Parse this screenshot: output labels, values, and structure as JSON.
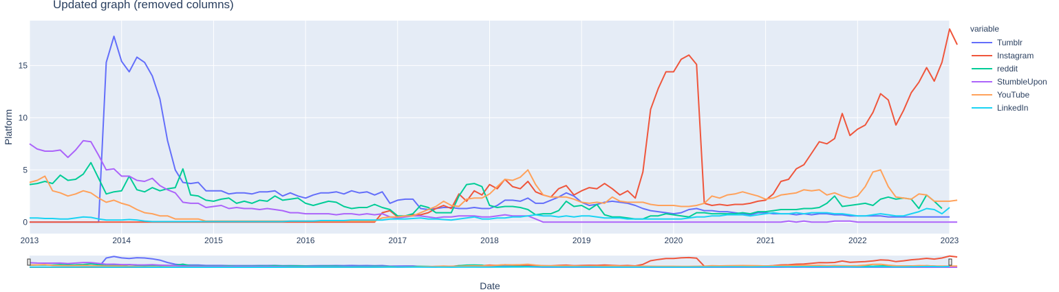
{
  "chart_data": {
    "type": "line",
    "title": "Updated graph (removed columns)",
    "xlabel": "Date",
    "ylabel": "Platform",
    "legend_title": "variable",
    "legend_position": "right",
    "grid": true,
    "range_slider": true,
    "xlim": [
      "2013-01",
      "2023-01"
    ],
    "ylim": [
      -1.1,
      19.3
    ],
    "x_ticks": [
      "2013",
      "2014",
      "2015",
      "2016",
      "2017",
      "2018",
      "2019",
      "2020",
      "2021",
      "2022",
      "2023"
    ],
    "y_ticks": [
      0,
      5,
      10,
      15
    ],
    "x_start": "2013-01",
    "x_step": "1 month",
    "series": [
      {
        "name": "Tumblr",
        "color": "#636efa",
        "values": [
          0,
          0,
          0,
          0,
          0,
          0,
          0,
          0,
          0,
          0,
          15.3,
          17.8,
          15.4,
          14.4,
          15.8,
          15.3,
          14,
          11.8,
          7.8,
          5,
          3.8,
          3.7,
          3.8,
          3,
          3,
          3,
          2.7,
          2.8,
          2.8,
          2.7,
          2.9,
          2.9,
          3,
          2.5,
          2.8,
          2.5,
          2.3,
          2.6,
          2.8,
          2.8,
          2.9,
          2.7,
          3,
          2.8,
          2.9,
          2.6,
          2.9,
          1.8,
          2.1,
          2.2,
          2.2,
          1.3,
          1.2,
          1.3,
          1.4,
          1.4,
          1.3,
          1.3,
          1.4,
          1.3,
          1.3,
          1.6,
          2.1,
          2.1,
          2,
          2.3,
          1.8,
          1.8,
          2.1,
          2.4,
          2.8,
          2.5,
          1.9,
          1.6,
          1.7,
          1.9,
          2,
          1.9,
          1.8,
          1.6,
          1.3,
          1.1,
          1,
          0.9,
          0.8,
          0.9,
          1.2,
          1.3,
          1.1,
          1.1,
          1,
          1,
          0.9,
          0.8,
          0.7,
          0.9,
          0.9,
          0.8,
          0.8,
          0.8,
          0.7,
          0.8,
          0.7,
          0.8,
          0.8,
          0.7,
          0.7,
          0.6,
          0.6,
          0.6,
          0.6,
          0.6,
          0.5,
          0.5,
          0.5,
          0.5,
          0.5,
          0.5,
          0.5,
          0.5,
          0.5
        ]
      },
      {
        "name": "Instagram",
        "color": "#ef553b",
        "values": [
          0,
          0,
          0,
          0,
          0,
          0,
          0,
          0,
          0,
          0,
          0,
          0,
          0,
          0,
          0,
          0,
          0,
          0,
          0,
          0,
          0,
          0,
          0,
          0,
          0,
          0,
          0,
          0,
          0,
          0,
          0,
          0,
          0,
          0,
          0,
          0,
          0,
          0,
          0,
          0,
          0,
          0,
          0,
          0,
          0,
          0,
          0.9,
          1.1,
          0.5,
          0.6,
          0.7,
          0.7,
          0.9,
          1.3,
          1.6,
          1.3,
          2.7,
          2,
          3,
          2.6,
          3.6,
          3.2,
          4.1,
          3.4,
          3.2,
          3.9,
          2.9,
          2.6,
          2.4,
          3.2,
          3.5,
          2.6,
          3,
          3.3,
          3.2,
          3.7,
          3.2,
          2.6,
          3.0,
          2.3,
          4.8,
          10.8,
          12.8,
          14.4,
          14.4,
          15.6,
          16,
          15.1,
          1.8,
          1.6,
          1.7,
          1.6,
          1.7,
          1.7,
          1.8,
          2,
          2.1,
          2.7,
          3.9,
          4.1,
          5.1,
          5.5,
          6.6,
          7.7,
          7.5,
          8,
          10.4,
          8.3,
          8.9,
          9.3,
          10.5,
          12.3,
          11.7,
          9.3,
          10.7,
          12.4,
          13.4,
          14.8,
          13.5,
          15.3,
          18.5,
          17
        ]
      },
      {
        "name": "reddit",
        "color": "#00cc96",
        "values": [
          3.6,
          3.7,
          3.9,
          3.7,
          4.5,
          4,
          4.1,
          4.6,
          5.7,
          4.2,
          2.7,
          2.9,
          3,
          4.4,
          3.1,
          2.9,
          3.3,
          3,
          3.2,
          3.3,
          5.1,
          2.6,
          2.5,
          2.1,
          2,
          2.2,
          2.3,
          1.8,
          2,
          1.8,
          2.1,
          2,
          2.5,
          2.1,
          2.2,
          2.3,
          1.8,
          1.6,
          1.8,
          2,
          1.9,
          1.5,
          1.3,
          1.4,
          1.4,
          1.7,
          1.4,
          1.2,
          0.6,
          0.6,
          0.8,
          1.6,
          1.4,
          0.9,
          0.9,
          0.9,
          2.5,
          3.6,
          3.7,
          3.4,
          1.6,
          1.4,
          1.5,
          1.5,
          1.4,
          1.2,
          0.7,
          0.8,
          0.8,
          1.1,
          2,
          1.5,
          1.6,
          1.2,
          1.7,
          0.7,
          0.5,
          0.5,
          0.4,
          0.3,
          0.3,
          0.6,
          0.6,
          0.8,
          0.7,
          0.6,
          0.5,
          0.9,
          0.9,
          0.8,
          0.8,
          0.8,
          0.8,
          0.9,
          0.8,
          1,
          1,
          1.1,
          1.2,
          1.2,
          1.2,
          1.3,
          1.3,
          1.4,
          1.8,
          2.5,
          1.5,
          1.6,
          1.7,
          1.8,
          1.6,
          2.2,
          2.4,
          2.2,
          2.3,
          2.2,
          1.3,
          2.6,
          2,
          1.3
        ]
      },
      {
        "name": "StumbleUpon",
        "color": "#ab63fa",
        "values": [
          7.5,
          7,
          6.8,
          6.8,
          6.9,
          6.2,
          6.9,
          7.8,
          7.7,
          6.4,
          5,
          5.1,
          4.4,
          4.4,
          4,
          3.9,
          4.2,
          3.5,
          3.1,
          2.8,
          1.9,
          1.8,
          1.8,
          1.4,
          1.5,
          1.6,
          1.3,
          1.4,
          1.3,
          1.3,
          1.2,
          1.3,
          1.2,
          1.1,
          0.9,
          0.9,
          0.8,
          0.8,
          0.8,
          0.8,
          0.7,
          0.8,
          0.8,
          0.7,
          0.8,
          0.7,
          0.8,
          0.5,
          0.4,
          0.5,
          0.6,
          0.6,
          0.5,
          0.4,
          0.5,
          0.5,
          0.6,
          0.6,
          0.6,
          0.5,
          0.5,
          0.6,
          0.7,
          0.6,
          0.6,
          0.6,
          0.3,
          0,
          0,
          0,
          0,
          0,
          0,
          0,
          0,
          0,
          0,
          0,
          0,
          0,
          0,
          0,
          0,
          0,
          0,
          0,
          0,
          0,
          0,
          0,
          0,
          0,
          0,
          0,
          0,
          0,
          0,
          0,
          0,
          0.1,
          0,
          0.1,
          0,
          0,
          0,
          0.1,
          0.1,
          0.1,
          0,
          0,
          0,
          0,
          0,
          0,
          0,
          0,
          0,
          0,
          0,
          0,
          0,
          0
        ]
      },
      {
        "name": "YouTube",
        "color": "#ffa15a",
        "values": [
          3.8,
          4,
          4.4,
          3,
          2.8,
          2.5,
          2.7,
          3,
          2.8,
          2.3,
          1.9,
          2.1,
          1.8,
          1.6,
          1.2,
          0.9,
          0.8,
          0.6,
          0.6,
          0.3,
          0.3,
          0.3,
          0.3,
          0.1,
          0.1,
          0.1,
          0.1,
          0.1,
          0.1,
          0.1,
          0.1,
          0.1,
          0.1,
          0.1,
          0.1,
          0.1,
          0.1,
          0.1,
          0.1,
          0.1,
          0.1,
          0.1,
          0.1,
          0.1,
          0.1,
          0.1,
          0.4,
          0.5,
          0.5,
          0.6,
          0.6,
          0.9,
          1.2,
          1.5,
          2,
          1.6,
          1.5,
          2.2,
          2.3,
          2.3,
          2.7,
          3.4,
          4.1,
          4,
          4.3,
          5,
          3.6,
          2.6,
          2.4,
          2.4,
          2.4,
          2.2,
          1.9,
          1.8,
          1.9,
          1.8,
          2.4,
          2,
          1.9,
          1.9,
          1.9,
          1.7,
          1.6,
          1.6,
          1.6,
          1.5,
          1.5,
          1.6,
          1.8,
          2.5,
          2.3,
          2.6,
          2.7,
          2.9,
          2.7,
          2.5,
          2.2,
          2.3,
          2.6,
          2.7,
          2.8,
          3.1,
          3,
          3.1,
          2.6,
          2.8,
          2.5,
          2.3,
          2.5,
          3.4,
          4.8,
          5,
          3.4,
          2.4,
          2.3,
          2.2,
          2.7,
          2.6,
          2,
          2,
          2,
          2.1
        ]
      },
      {
        "name": "LinkedIn",
        "color": "#19d3f3",
        "values": [
          0.4,
          0.4,
          0.35,
          0.35,
          0.3,
          0.3,
          0.4,
          0.5,
          0.45,
          0.3,
          0.2,
          0.2,
          0.2,
          0.25,
          0.2,
          0.1,
          0.05,
          0.05,
          0.05,
          0.05,
          0.05,
          0.05,
          0.05,
          0.05,
          0.05,
          0.05,
          0.05,
          0.05,
          0.05,
          0.05,
          0.05,
          0.05,
          0.05,
          0.05,
          0.1,
          0.1,
          0.1,
          0.1,
          0.15,
          0.15,
          0.15,
          0.15,
          0.2,
          0.2,
          0.2,
          0.2,
          0.2,
          0.3,
          0.3,
          0.3,
          0.35,
          0.4,
          0.3,
          0.3,
          0.25,
          0.2,
          0.3,
          0.4,
          0.5,
          0.3,
          0.3,
          0.4,
          0.4,
          0.5,
          0.5,
          0.6,
          0.7,
          0.6,
          0.6,
          0.5,
          0.6,
          0.5,
          0.6,
          0.6,
          0.5,
          0.4,
          0.4,
          0.4,
          0.3,
          0.3,
          0.3,
          0.3,
          0.3,
          0.3,
          0.3,
          0.3,
          0.4,
          0.5,
          0.5,
          0.6,
          0.6,
          0.7,
          0.7,
          0.7,
          0.6,
          0.7,
          0.8,
          0.9,
          0.8,
          0.8,
          0.9,
          0.8,
          0.9,
          0.9,
          0.9,
          0.8,
          0.8,
          0.7,
          0.6,
          0.6,
          0.7,
          0.8,
          0.7,
          0.6,
          0.6,
          0.8,
          1,
          1.3,
          1.2,
          0.8,
          1.4
        ]
      }
    ]
  }
}
